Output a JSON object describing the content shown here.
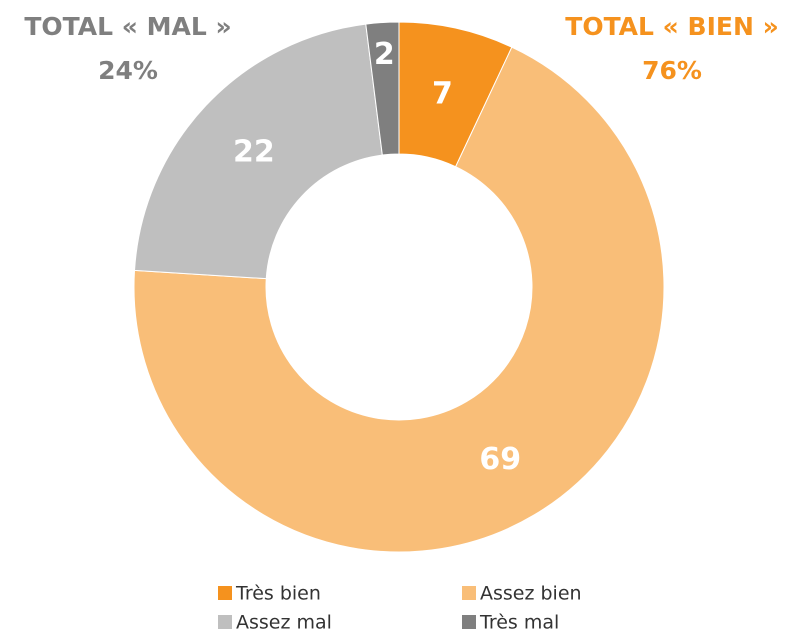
{
  "chart_data": {
    "type": "donut",
    "categories": [
      "Très bien",
      "Assez bien",
      "Assez mal",
      "Très mal"
    ],
    "values": [
      7,
      69,
      22,
      2
    ],
    "colors": [
      "#f5921e",
      "#f9be78",
      "#bfbfbf",
      "#7f7f7f"
    ],
    "annotations": [
      {
        "title": "TOTAL « MAL »",
        "text": "24%",
        "color": "#7f7f7f"
      },
      {
        "title": "TOTAL « BIEN »",
        "text": "76%",
        "color": "#f5921e"
      }
    ],
    "legend": "bottom"
  }
}
